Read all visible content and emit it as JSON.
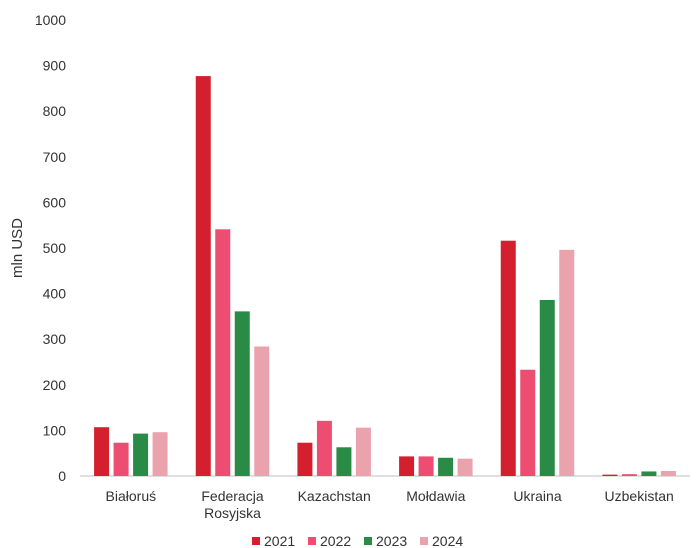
{
  "chart_data": {
    "type": "bar",
    "title": "",
    "xlabel": "",
    "ylabel": "mln USD",
    "ylim": [
      0,
      1000
    ],
    "yticks": [
      0,
      100,
      200,
      300,
      400,
      500,
      600,
      700,
      800,
      900,
      1000
    ],
    "grid": false,
    "legend_position": "bottom",
    "categories": [
      [
        "Białoruś"
      ],
      [
        "Federacja",
        "Rosyjska"
      ],
      [
        "Kazachstan"
      ],
      [
        "Mołdawia"
      ],
      [
        "Ukraina"
      ],
      [
        "Uzbekistan"
      ]
    ],
    "series": [
      {
        "name": "2021",
        "color": "#d41f2e",
        "values": [
          107,
          877,
          73,
          43,
          516,
          3
        ]
      },
      {
        "name": "2022",
        "color": "#ee4d72",
        "values": [
          73,
          541,
          121,
          43,
          233,
          4
        ]
      },
      {
        "name": "2023",
        "color": "#2a8b46",
        "values": [
          93,
          361,
          63,
          40,
          386,
          10
        ]
      },
      {
        "name": "2024",
        "color": "#eaa2ad",
        "values": [
          96,
          284,
          106,
          38,
          496,
          11
        ]
      }
    ]
  }
}
